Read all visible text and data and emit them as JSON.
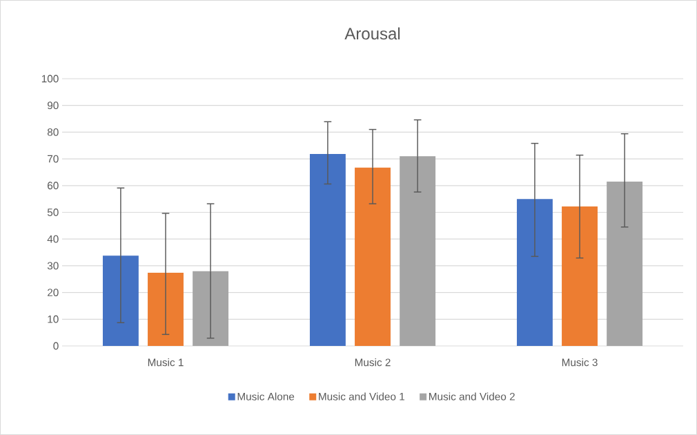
{
  "chart_data": {
    "type": "bar",
    "title": "Arousal",
    "categories": [
      "Music 1",
      "Music 2",
      "Music 3"
    ],
    "series": [
      {
        "name": "Music Alone",
        "color": "#4472c4",
        "values": [
          33.8,
          71.8,
          55.0
        ],
        "errors": [
          [
            8.7,
            59.1
          ],
          [
            60.6,
            83.9
          ],
          [
            33.5,
            75.8
          ]
        ]
      },
      {
        "name": "Music and Video 1",
        "color": "#ed7d31",
        "values": [
          27.4,
          66.7,
          52.2
        ],
        "errors": [
          [
            4.3,
            49.6
          ],
          [
            53.2,
            81.0
          ],
          [
            32.9,
            71.4
          ]
        ]
      },
      {
        "name": "Music and Video 2",
        "color": "#a5a5a5",
        "values": [
          28.0,
          71.0,
          61.5
        ],
        "errors": [
          [
            2.9,
            53.2
          ],
          [
            57.6,
            84.6
          ],
          [
            44.5,
            79.4
          ]
        ]
      }
    ],
    "ylim": [
      0,
      100
    ],
    "yticks": [
      0,
      10,
      20,
      30,
      40,
      50,
      60,
      70,
      80,
      90,
      100
    ],
    "grid": "y",
    "legend": "bottom"
  }
}
